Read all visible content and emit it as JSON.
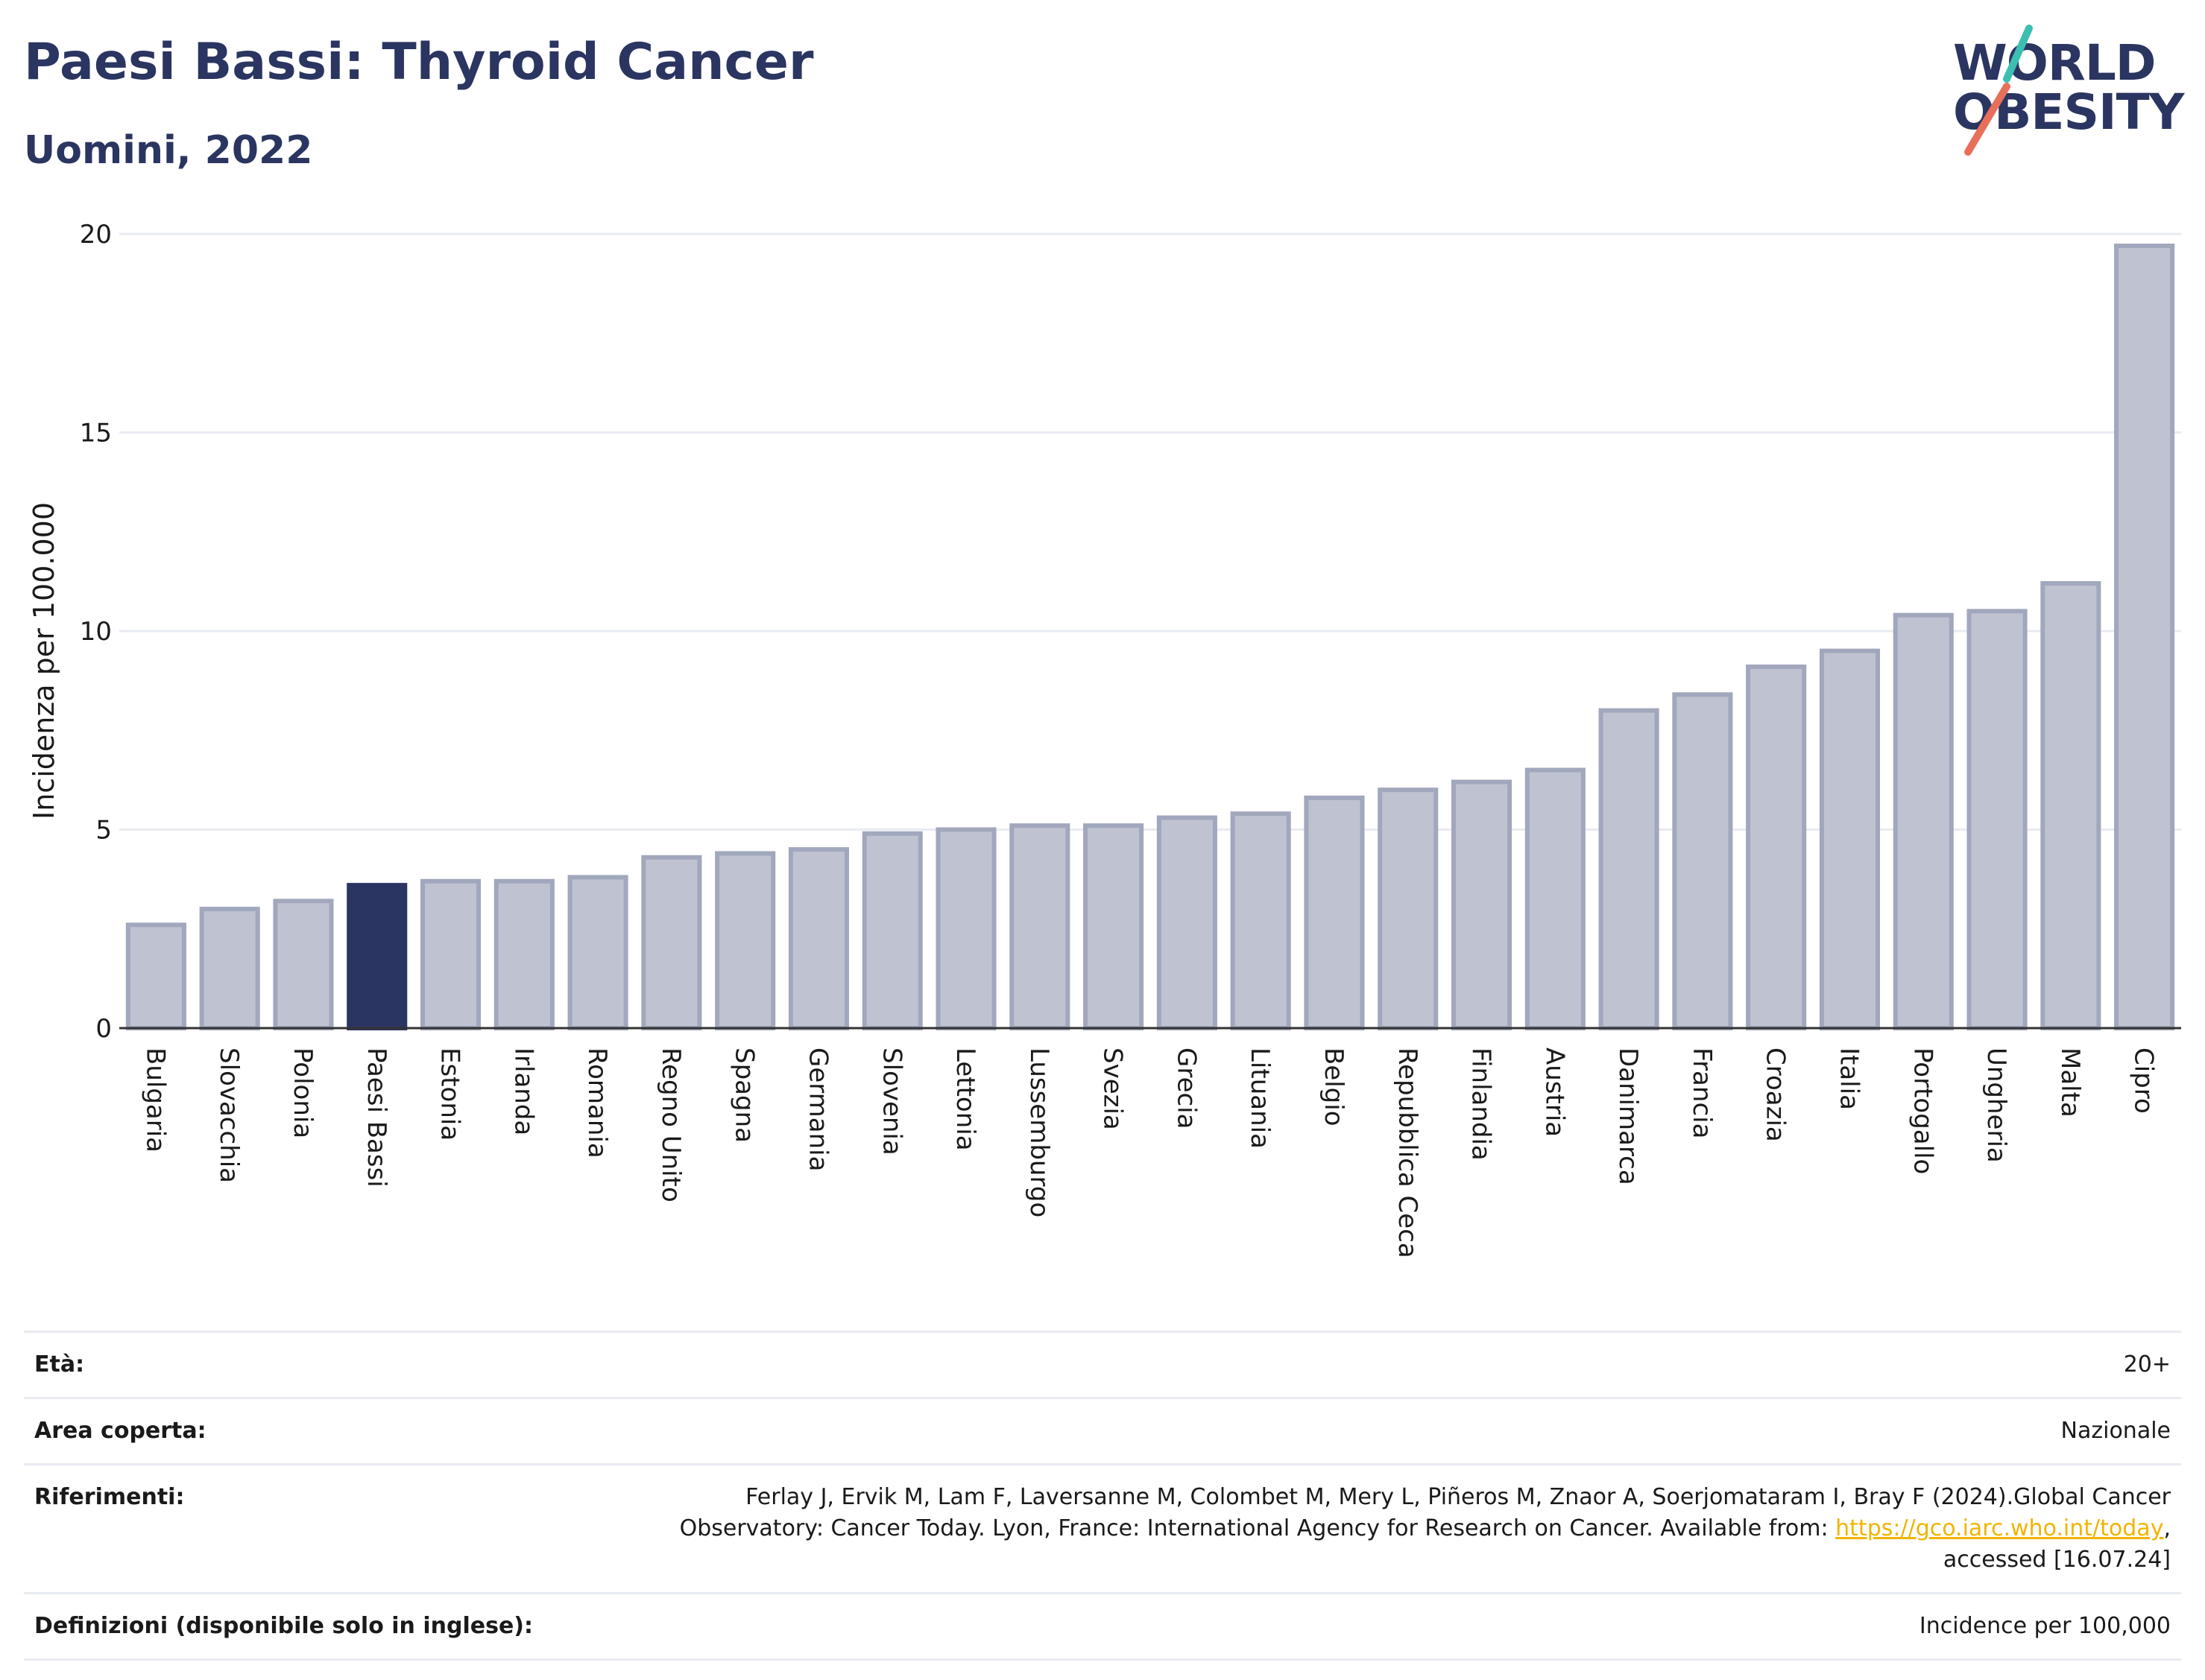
{
  "header": {
    "title": "Paesi Bassi: Thyroid Cancer",
    "subtitle": "Uomini, 2022",
    "logo_line1": "WORLD",
    "logo_line2": "OBESITY"
  },
  "colors": {
    "title": "#2b3561",
    "bar": "#bfc3d1",
    "bar_border": "#a1a7bc",
    "highlight": "#2b3561",
    "gridline": "#e8ebf2",
    "link": "#f2b400",
    "logo_teal": "#3bbfb0",
    "logo_coral": "#e8705a"
  },
  "chart_data": {
    "type": "bar",
    "title": "Paesi Bassi: Thyroid Cancer",
    "subtitle": "Uomini, 2022",
    "ylabel": "Incidenza per 100.000",
    "xlabel": "",
    "ylim": [
      0,
      20
    ],
    "yticks": [
      0,
      5,
      10,
      15,
      20
    ],
    "grid": true,
    "highlight": "Paesi Bassi",
    "categories": [
      "Bulgaria",
      "Slovacchia",
      "Polonia",
      "Paesi Bassi",
      "Estonia",
      "Irlanda",
      "Romania",
      "Regno Unito",
      "Spagna",
      "Germania",
      "Slovenia",
      "Lettonia",
      "Lussemburgo",
      "Svezia",
      "Grecia",
      "Lituania",
      "Belgio",
      "Repubblica Ceca",
      "Finlandia",
      "Austria",
      "Danimarca",
      "Francia",
      "Croazia",
      "Italia",
      "Portogallo",
      "Ungheria",
      "Malta",
      "Cipro"
    ],
    "values": [
      2.6,
      3.0,
      3.2,
      3.6,
      3.7,
      3.7,
      3.8,
      4.3,
      4.4,
      4.5,
      4.9,
      5.0,
      5.1,
      5.1,
      5.3,
      5.4,
      5.8,
      6.0,
      6.2,
      6.5,
      8.0,
      8.4,
      9.1,
      9.5,
      10.4,
      10.5,
      11.2,
      19.7
    ]
  },
  "info": {
    "age_label": "Età:",
    "age_value": "20+",
    "area_label": "Area coperta:",
    "area_value": "Nazionale",
    "refs_label": "Riferimenti:",
    "refs_text_1": "Ferlay J, Ervik M, Lam F, Laversanne M, Colombet M, Mery L, Piñeros M, Znaor A, Soerjomataram I, Bray F (2024).Global Cancer",
    "refs_text_2": "Observatory: Cancer Today. Lyon, France: International Agency for Research on Cancer. Available from: ",
    "refs_link": "https://gco.iarc.who.int/today",
    "refs_text_3": ",",
    "refs_text_4": "accessed [16.07.24]",
    "defs_label": "Definizioni (disponibile solo in inglese):",
    "defs_value": "Incidence per 100,000"
  }
}
